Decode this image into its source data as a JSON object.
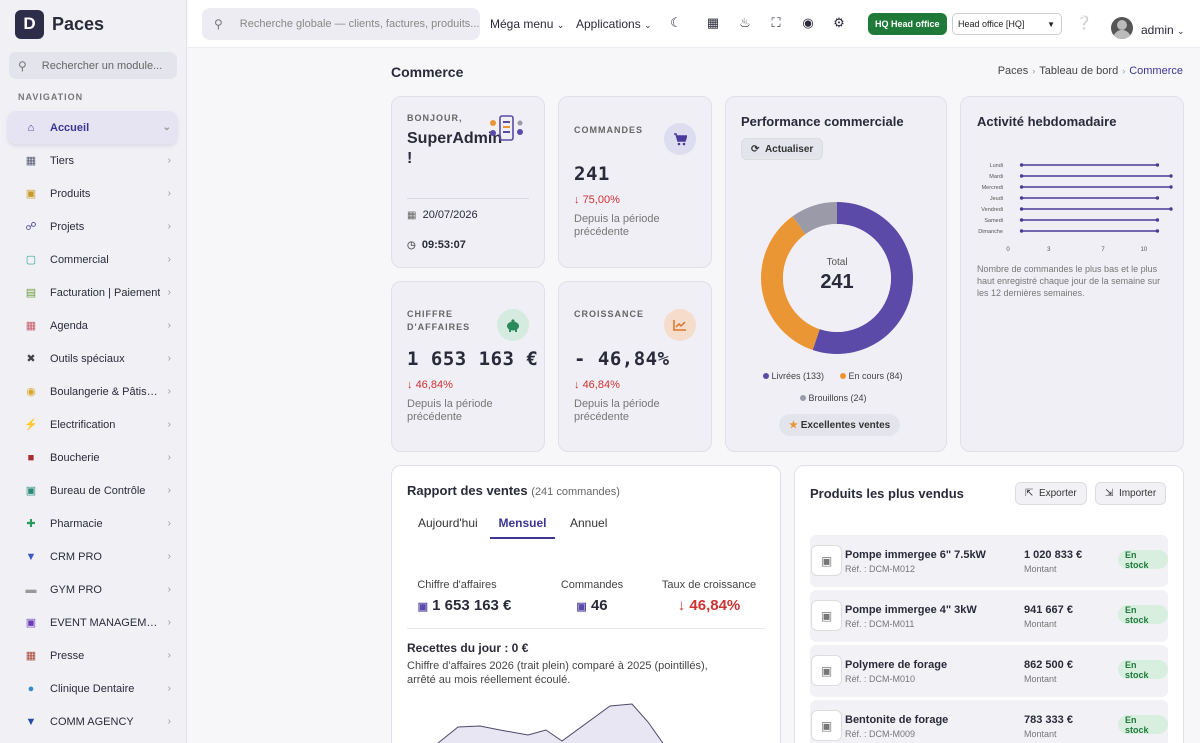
{
  "app": {
    "logo_letter": "D",
    "name": "Paces"
  },
  "sidebar": {
    "search_placeholder": "Rechercher un module...",
    "section_label": "NAVIGATION",
    "items": [
      {
        "label": "Accueil",
        "icon": "home-icon",
        "color": "#3b3694",
        "active": true
      },
      {
        "label": "Tiers",
        "icon": "building-icon",
        "color": "#5a5a7a"
      },
      {
        "label": "Produits",
        "icon": "cube-icon",
        "color": "#c89a2a"
      },
      {
        "label": "Projets",
        "icon": "project-icon",
        "color": "#4a4a9a"
      },
      {
        "label": "Commercial",
        "icon": "shop-icon",
        "color": "#3aa58a"
      },
      {
        "label": "Facturation | Paiement",
        "icon": "invoice-icon",
        "color": "#6a9a3a"
      },
      {
        "label": "Agenda",
        "icon": "calendar-icon",
        "color": "#c85a6a"
      },
      {
        "label": "Outils spéciaux",
        "icon": "tools-icon",
        "color": "#444"
      },
      {
        "label": "Boulangerie & Pâtisserie",
        "icon": "bread-icon",
        "color": "#d8a82a"
      },
      {
        "label": "Electrification",
        "icon": "bolt-icon",
        "color": "#e8b82a"
      },
      {
        "label": "Boucherie",
        "icon": "meat-icon",
        "color": "#a82a2a"
      },
      {
        "label": "Bureau de Contrôle",
        "icon": "control-icon",
        "color": "#2a8a7a"
      },
      {
        "label": "Pharmacie",
        "icon": "pharmacy-icon",
        "color": "#2a9a5a"
      },
      {
        "label": "CRM PRO",
        "icon": "crm-icon",
        "color": "#3a5ac8"
      },
      {
        "label": "GYM PRO",
        "icon": "gym-icon",
        "color": "#999"
      },
      {
        "label": "EVENT MANAGEMENT",
        "icon": "event-icon",
        "color": "#6a3ab8"
      },
      {
        "label": "Presse",
        "icon": "press-icon",
        "color": "#a84a3a"
      },
      {
        "label": "Clinique Dentaire",
        "icon": "tooth-icon",
        "color": "#3a8ac8"
      },
      {
        "label": "COMM AGENCY",
        "icon": "agency-icon",
        "color": "#2a4aa8"
      }
    ]
  },
  "topbar": {
    "search_placeholder": "Recherche globale — clients, factures, produits...",
    "mega_menu": "Méga menu",
    "applications": "Applications",
    "hq_badge_code": "HQ",
    "hq_badge_label": "Head office",
    "office_select": "Head office [HQ]",
    "user": "admin"
  },
  "page": {
    "title": "Commerce",
    "breadcrumb": [
      "Paces",
      "Tableau de bord",
      "Commerce"
    ]
  },
  "welcome": {
    "greeting": "BONJOUR,",
    "name": "SuperAdmin !",
    "date": "20/07/2026",
    "time": "09:53:07"
  },
  "orders": {
    "label": "COMMANDES",
    "value": "241",
    "change": "75,00%",
    "note": "Depuis la période précédente"
  },
  "revenue": {
    "label": "CHIFFRE D'AFFAIRES",
    "value": "1 653 163 €",
    "change": "46,84%",
    "note": "Depuis la période précédente"
  },
  "growth": {
    "label": "CROISSANCE",
    "value": "- 46,84%",
    "change": "46,84%",
    "note": "Depuis la période précédente"
  },
  "performance": {
    "title": "Performance commerciale",
    "refresh": "Actualiser",
    "total_label": "Total",
    "total": "241",
    "badge": "Excellentes ventes",
    "legend": [
      {
        "label": "Livrées (133)",
        "color": "#5b4aa8"
      },
      {
        "label": "En cours (84)",
        "color": "#eb9634"
      },
      {
        "label": "Brouillons (24)",
        "color": "#9a9aa8"
      }
    ]
  },
  "weekly": {
    "title": "Activité hebdomadaire",
    "note": "Nombre de commandes le plus bas et le plus haut enregistré chaque jour de la semaine sur les 12 dernières semaines."
  },
  "sales": {
    "title": "Rapport des ventes",
    "subtitle": "(241 commandes)",
    "tabs": [
      "Aujourd'hui",
      "Mensuel",
      "Annuel"
    ],
    "active_tab": 1,
    "kpis": [
      {
        "label": "Chiffre d'affaires",
        "value": "1 653 163 €",
        "icon": "wallet-icon"
      },
      {
        "label": "Commandes",
        "value": "46",
        "icon": "bag-icon"
      },
      {
        "label": "Taux de croissance",
        "value": "46,84%",
        "icon": "arrow-down-icon"
      }
    ],
    "daily": "Recettes du jour : 0 €",
    "note": "Chiffre d'affaires 2026 (trait plein) comparé à 2025 (pointillés), arrêté au mois réellement écoulé."
  },
  "top_products": {
    "title": "Produits les plus vendus",
    "export": "Exporter",
    "import": "Importer",
    "amount_label": "Montant",
    "stock_label": "En stock",
    "items": [
      {
        "name": "Pompe immergee 6\" 7.5kW",
        "ref": "Réf. : DCM-M012",
        "amount": "1 020 833 €"
      },
      {
        "name": "Pompe immergee 4\" 3kW",
        "ref": "Réf. : DCM-M011",
        "amount": "941 667 €"
      },
      {
        "name": "Polymere de forage",
        "ref": "Réf. : DCM-M010",
        "amount": "862 500 €"
      },
      {
        "name": "Bentonite de forage",
        "ref": "Réf. : DCM-M009",
        "amount": "783 333 €"
      }
    ]
  },
  "chart_data": [
    {
      "type": "pie",
      "title": "Performance commerciale",
      "categories": [
        "Livrées",
        "En cours",
        "Brouillons"
      ],
      "values": [
        133,
        84,
        24
      ],
      "colors": [
        "#5b4aa8",
        "#eb9634",
        "#9a9aa8"
      ]
    },
    {
      "type": "bar",
      "orientation": "horizontal",
      "title": "Activité hebdomadaire",
      "categories": [
        "Lundi",
        "Mardi",
        "Mercredi",
        "Jeudi",
        "Vendredi",
        "Samedi",
        "Dimanche"
      ],
      "series": [
        {
          "values_min": [
            1,
            1,
            1,
            1,
            1,
            1,
            1
          ],
          "values_max": [
            11,
            12,
            12,
            11,
            12,
            11,
            11
          ]
        }
      ],
      "x_ticks": [
        "0",
        "3",
        "7",
        "10"
      ],
      "xlim": [
        0,
        12
      ]
    }
  ]
}
